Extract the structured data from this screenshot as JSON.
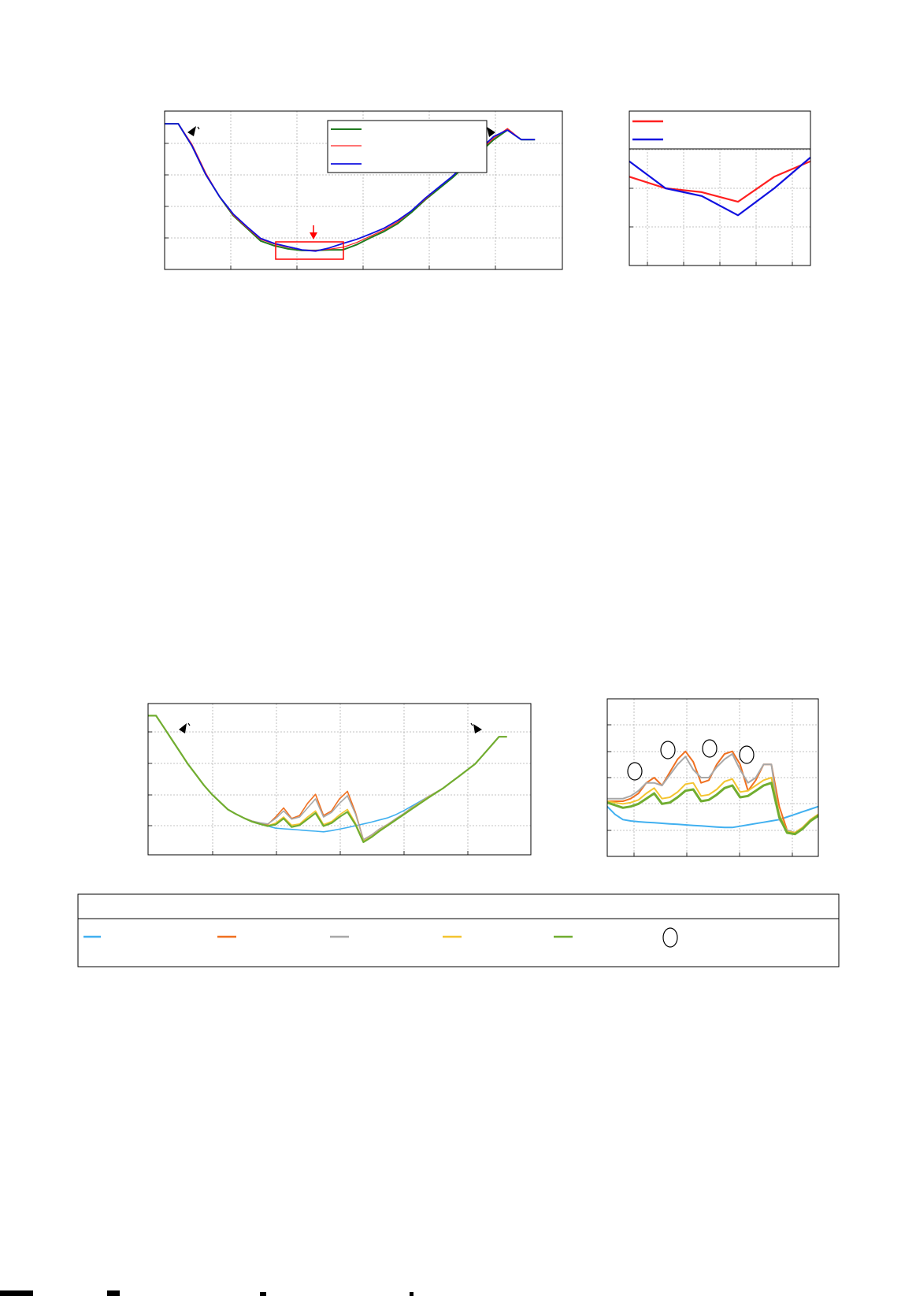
{
  "figure": {
    "colors": {
      "green": "#1f7a1f",
      "red": "#ff2020",
      "blue": "#1010e0",
      "light_blue": "#41b0f0",
      "orange": "#f07020",
      "gray": "#a8a8a8",
      "yellow": "#f4c430",
      "olive": "#70ad30",
      "highlight": "#ff0000"
    }
  },
  "chart_data": [
    {
      "id": "top-main",
      "type": "line",
      "x": [
        0,
        1,
        2,
        3,
        4,
        5,
        6,
        7,
        8,
        9,
        10,
        11,
        12,
        13,
        14,
        15,
        16,
        17,
        18,
        19,
        20,
        21,
        22,
        23,
        24,
        25,
        26,
        27
      ],
      "xlim": [
        0,
        29
      ],
      "ylim": [
        0,
        5
      ],
      "series": [
        {
          "color_key": "green",
          "width": 2,
          "values": [
            4.6,
            4.6,
            3.9,
            3.0,
            2.3,
            1.7,
            1.3,
            0.9,
            0.75,
            0.65,
            0.6,
            0.6,
            0.62,
            0.62,
            0.78,
            1.0,
            1.2,
            1.45,
            1.8,
            2.2,
            2.55,
            2.9,
            3.3,
            3.7,
            4.1,
            4.4,
            4.1,
            4.1
          ]
        },
        {
          "color_key": "red",
          "width": 1.2,
          "values": [
            4.6,
            4.6,
            3.95,
            3.05,
            2.3,
            1.72,
            1.32,
            0.95,
            0.8,
            0.7,
            0.62,
            0.6,
            0.64,
            0.7,
            0.85,
            1.05,
            1.25,
            1.5,
            1.85,
            2.22,
            2.6,
            2.95,
            3.35,
            3.75,
            4.15,
            4.45,
            4.1,
            4.1
          ]
        },
        {
          "color_key": "blue",
          "width": 1.8,
          "values": [
            4.6,
            4.6,
            3.9,
            3.0,
            2.3,
            1.75,
            1.35,
            0.98,
            0.82,
            0.72,
            0.62,
            0.58,
            0.68,
            0.82,
            0.95,
            1.12,
            1.3,
            1.55,
            1.85,
            2.25,
            2.6,
            2.95,
            3.35,
            3.8,
            4.2,
            4.4,
            4.1,
            4.1
          ]
        }
      ]
    },
    {
      "id": "top-zoom",
      "type": "line",
      "x": [
        0,
        1,
        2,
        3,
        4,
        5
      ],
      "xlim": [
        0,
        5
      ],
      "ylim": [
        0,
        4
      ],
      "series": [
        {
          "color_key": "red",
          "width": 2.2,
          "values": [
            2.3,
            2.0,
            1.9,
            1.65,
            2.3,
            2.7
          ]
        },
        {
          "color_key": "blue",
          "width": 2.2,
          "values": [
            2.7,
            2.0,
            1.8,
            1.3,
            2.0,
            2.8
          ]
        }
      ]
    },
    {
      "id": "bottom-main",
      "type": "line",
      "x": [
        0,
        1,
        2,
        3,
        4,
        5,
        6,
        7,
        8,
        9,
        10,
        11,
        12,
        13,
        14,
        15,
        16,
        17,
        18,
        19,
        20,
        21,
        22,
        23,
        24,
        25,
        26,
        27,
        28,
        29,
        30,
        31,
        32,
        33,
        34,
        35,
        36,
        37,
        38,
        39,
        40,
        41,
        42,
        43,
        44,
        45
      ],
      "xlim": [
        0,
        48
      ],
      "ylim": [
        0,
        5
      ],
      "series": [
        {
          "color_key": "light_blue",
          "width": 1.6,
          "values": [
            4.6,
            4.6,
            4.2,
            3.8,
            3.4,
            3.0,
            2.65,
            2.3,
            2.0,
            1.75,
            1.5,
            1.35,
            1.22,
            1.1,
            1.02,
            0.95,
            0.88,
            0.86,
            0.84,
            0.82,
            0.8,
            0.78,
            0.76,
            0.8,
            0.85,
            0.9,
            0.96,
            1.02,
            1.08,
            1.15,
            1.22,
            1.32,
            1.45,
            1.6,
            1.75,
            1.9,
            2.05,
            2.2,
            2.4,
            2.6,
            2.8,
            3.0,
            3.3,
            3.6,
            3.9,
            3.9
          ]
        },
        {
          "color_key": "orange",
          "width": 1.6,
          "values": [
            4.6,
            4.6,
            4.2,
            3.8,
            3.4,
            3.0,
            2.65,
            2.3,
            2.0,
            1.75,
            1.5,
            1.35,
            1.22,
            1.12,
            1.05,
            1.0,
            1.25,
            1.55,
            1.2,
            1.3,
            1.7,
            2.0,
            1.3,
            1.45,
            1.85,
            2.1,
            1.4,
            0.5,
            0.65,
            0.85,
            1.0,
            1.18,
            1.35,
            1.55,
            1.72,
            1.9,
            2.05,
            2.2,
            2.4,
            2.6,
            2.8,
            3.0,
            3.3,
            3.6,
            3.9,
            3.9
          ]
        },
        {
          "color_key": "gray",
          "width": 1.6,
          "values": [
            4.6,
            4.6,
            4.2,
            3.8,
            3.4,
            3.0,
            2.65,
            2.3,
            2.0,
            1.75,
            1.5,
            1.35,
            1.22,
            1.12,
            1.06,
            1.02,
            1.2,
            1.45,
            1.18,
            1.25,
            1.55,
            1.85,
            1.25,
            1.4,
            1.7,
            1.95,
            1.35,
            0.5,
            0.65,
            0.85,
            1.0,
            1.18,
            1.35,
            1.55,
            1.72,
            1.9,
            2.05,
            2.2,
            2.4,
            2.6,
            2.8,
            3.0,
            3.3,
            3.6,
            3.9,
            3.9
          ]
        },
        {
          "color_key": "yellow",
          "width": 1.6,
          "values": [
            4.6,
            4.6,
            4.2,
            3.8,
            3.4,
            3.0,
            2.65,
            2.3,
            2.0,
            1.75,
            1.5,
            1.35,
            1.22,
            1.1,
            1.02,
            0.96,
            1.05,
            1.25,
            0.98,
            1.02,
            1.25,
            1.45,
            1.0,
            1.1,
            1.32,
            1.5,
            1.05,
            0.45,
            0.6,
            0.8,
            0.98,
            1.15,
            1.33,
            1.52,
            1.7,
            1.88,
            2.04,
            2.2,
            2.4,
            2.6,
            2.8,
            3.0,
            3.3,
            3.6,
            3.9,
            3.9
          ]
        },
        {
          "color_key": "olive",
          "width": 2.2,
          "values": [
            4.6,
            4.6,
            4.2,
            3.8,
            3.4,
            3.0,
            2.65,
            2.3,
            2.0,
            1.75,
            1.5,
            1.35,
            1.22,
            1.1,
            1.02,
            0.95,
            1.0,
            1.2,
            0.92,
            0.98,
            1.18,
            1.38,
            0.95,
            1.05,
            1.25,
            1.42,
            1.0,
            0.42,
            0.58,
            0.78,
            0.96,
            1.14,
            1.32,
            1.5,
            1.68,
            1.86,
            2.03,
            2.2,
            2.4,
            2.6,
            2.8,
            3.0,
            3.3,
            3.6,
            3.9,
            3.9
          ]
        }
      ]
    },
    {
      "id": "bottom-zoom",
      "type": "line",
      "x": [
        0,
        1,
        2,
        3,
        4,
        5,
        6,
        7,
        8,
        9,
        10,
        11,
        12,
        13,
        14,
        15,
        16,
        17,
        18,
        19,
        20,
        21,
        22,
        23,
        24,
        25,
        26,
        27
      ],
      "xlim": [
        0,
        27
      ],
      "ylim": [
        0,
        6
      ],
      "series": [
        {
          "color_key": "light_blue",
          "width": 2,
          "values": [
            1.9,
            1.6,
            1.4,
            1.35,
            1.32,
            1.3,
            1.28,
            1.26,
            1.24,
            1.22,
            1.2,
            1.18,
            1.16,
            1.14,
            1.12,
            1.1,
            1.1,
            1.15,
            1.2,
            1.25,
            1.3,
            1.35,
            1.4,
            1.5,
            1.6,
            1.7,
            1.8,
            1.9
          ]
        },
        {
          "color_key": "orange",
          "width": 2,
          "values": [
            2.1,
            2.1,
            2.1,
            2.2,
            2.4,
            2.8,
            3.0,
            2.7,
            3.2,
            3.7,
            4.0,
            3.6,
            2.8,
            2.9,
            3.5,
            3.9,
            4.0,
            3.5,
            2.5,
            2.9,
            3.5,
            3.5,
            1.9,
            1.0,
            0.9,
            1.1,
            1.4,
            1.6
          ]
        },
        {
          "color_key": "gray",
          "width": 2,
          "values": [
            2.2,
            2.2,
            2.2,
            2.3,
            2.5,
            2.8,
            2.8,
            2.7,
            3.1,
            3.5,
            3.8,
            3.3,
            3.0,
            3.0,
            3.4,
            3.7,
            3.9,
            3.3,
            2.8,
            3.0,
            3.5,
            3.5,
            1.4,
            1.0,
            0.9,
            1.1,
            1.4,
            1.6
          ]
        },
        {
          "color_key": "yellow",
          "width": 2,
          "values": [
            2.1,
            2.05,
            2.0,
            2.05,
            2.15,
            2.4,
            2.6,
            2.2,
            2.25,
            2.45,
            2.75,
            2.8,
            2.3,
            2.35,
            2.55,
            2.85,
            2.95,
            2.45,
            2.5,
            2.7,
            2.9,
            3.0,
            1.6,
            0.95,
            0.9,
            1.1,
            1.4,
            1.6
          ]
        },
        {
          "color_key": "olive",
          "width": 3,
          "values": [
            2.05,
            1.95,
            1.85,
            1.9,
            2.0,
            2.2,
            2.4,
            2.0,
            2.05,
            2.25,
            2.5,
            2.55,
            2.1,
            2.15,
            2.35,
            2.6,
            2.7,
            2.25,
            2.3,
            2.5,
            2.7,
            2.8,
            1.5,
            0.9,
            0.85,
            1.05,
            1.35,
            1.55
          ]
        }
      ]
    }
  ]
}
